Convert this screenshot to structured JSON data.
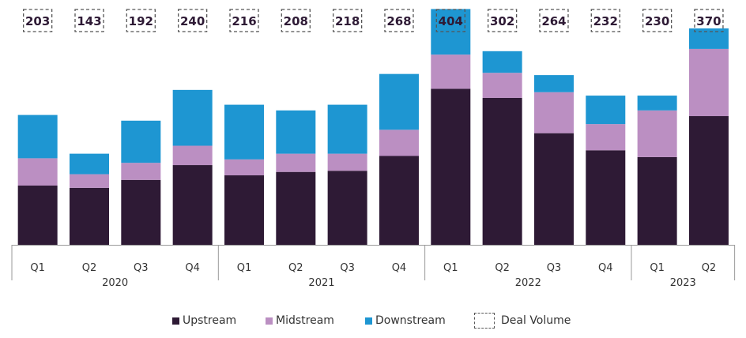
{
  "chart_data": {
    "type": "bar",
    "stacked": true,
    "categories": [
      "Q1",
      "Q2",
      "Q3",
      "Q4",
      "Q1",
      "Q2",
      "Q3",
      "Q4",
      "Q1",
      "Q2",
      "Q3",
      "Q4",
      "Q1",
      "Q2"
    ],
    "year_groups": [
      {
        "label": "2020",
        "count": 4
      },
      {
        "label": "2021",
        "count": 4
      },
      {
        "label": "2022",
        "count": 4
      },
      {
        "label": "2023",
        "count": 2
      }
    ],
    "series": [
      {
        "name": "Upstream",
        "color": "#2e1a35",
        "values": [
          26,
          25,
          28.5,
          35,
          30.5,
          32,
          32.5,
          39,
          68.5,
          64.5,
          49,
          41.5,
          38.5,
          56.5
        ]
      },
      {
        "name": "Midstream",
        "color": "#bb8fc2",
        "values": [
          12,
          6,
          7.5,
          8.5,
          7,
          8,
          7.5,
          11.5,
          15,
          11,
          18,
          11.5,
          20.5,
          29.5
        ]
      },
      {
        "name": "Downstream",
        "color": "#1e96d2",
        "values": [
          19,
          9,
          18.5,
          24.5,
          24,
          19,
          21.5,
          24.5,
          20,
          9.5,
          7.5,
          12.5,
          6.5,
          9
        ]
      }
    ],
    "deal_volume": {
      "name": "Deal Volume",
      "values": [
        203,
        143,
        192,
        240,
        216,
        208,
        218,
        268,
        404,
        302,
        264,
        232,
        230,
        370
      ]
    },
    "ylim": [
      0,
      104
    ],
    "grid": false,
    "legend": "bottom",
    "title": "",
    "xlabel": "",
    "ylabel": ""
  }
}
